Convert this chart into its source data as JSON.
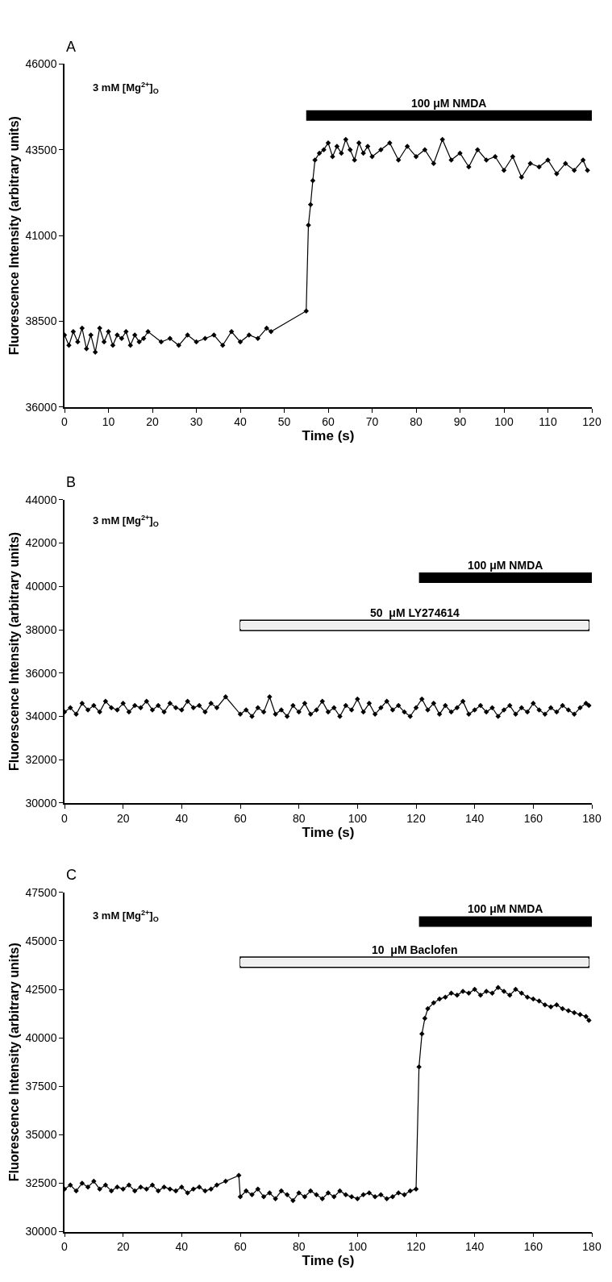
{
  "chart_data": [
    {
      "type": "line",
      "title": "A",
      "xlabel": "Time (s)",
      "ylabel": "Fluorescence Intensity (arbitrary units)",
      "annotations": [
        "3 mM [Mg$^{2+}$]$_{O}$"
      ],
      "x": [
        0,
        1,
        2,
        3,
        4,
        5,
        6,
        7,
        8,
        9,
        10,
        11,
        12,
        13,
        14,
        15,
        16,
        17,
        18,
        19,
        22,
        24,
        26,
        28,
        30,
        32,
        34,
        36,
        38,
        40,
        42,
        44,
        46,
        47,
        55,
        55.5,
        56,
        56.5,
        57,
        58,
        59,
        60,
        61,
        62,
        63,
        64,
        65,
        66,
        67,
        68,
        69,
        70,
        72,
        74,
        76,
        78,
        80,
        82,
        84,
        86,
        88,
        90,
        92,
        94,
        96,
        98,
        100,
        102,
        104,
        106,
        108,
        110,
        112,
        114,
        116,
        118,
        119
      ],
      "series": [
        {
          "color": "#000000",
          "values": [
            38100,
            37800,
            38200,
            37900,
            38300,
            37700,
            38100,
            37600,
            38300,
            37900,
            38200,
            37800,
            38100,
            38000,
            38200,
            37800,
            38100,
            37900,
            38000,
            38200,
            37900,
            38000,
            37800,
            38100,
            37900,
            38000,
            38100,
            37800,
            38200,
            37900,
            38100,
            38000,
            38300,
            38200,
            38800,
            41300,
            41900,
            42600,
            43200,
            43400,
            43500,
            43700,
            43300,
            43600,
            43400,
            43800,
            43500,
            43200,
            43700,
            43400,
            43600,
            43300,
            43500,
            43700,
            43200,
            43600,
            43300,
            43500,
            43100,
            43800,
            43200,
            43400,
            43000,
            43500,
            43200,
            43300,
            42900,
            43300,
            42700,
            43100,
            43000,
            43200,
            42800,
            43100,
            42900,
            43200,
            42900
          ]
        },
        {
          "type": "line",
          "name": "100 μM NMDA",
          "color": "#000000",
          "marker": "none",
          "x": [
            55,
            120
          ],
          "values": [
            44500,
            44500
          ]
        }
      ],
      "xlim": [
        0,
        120
      ],
      "xticks": [
        0,
        10,
        20,
        30,
        40,
        50,
        60,
        70,
        80,
        90,
        100,
        110,
        120
      ],
      "ylim": [
        36000,
        46000
      ],
      "yticks": [
        36000,
        38500,
        41000,
        43500,
        46000
      ],
      "marker": "diamond",
      "line_style": "solid",
      "grid": false,
      "legend": false
    },
    {
      "type": "line",
      "title": "B",
      "xlabel": "Time (s)",
      "ylabel": "Fluorescence Intensity (arbitrary units)",
      "annotations": [
        "3 mM [Mg$^{2+}$]$_{O}$"
      ],
      "x": [
        0,
        2,
        4,
        6,
        8,
        10,
        12,
        14,
        16,
        18,
        20,
        22,
        24,
        26,
        28,
        30,
        32,
        34,
        36,
        38,
        40,
        42,
        44,
        46,
        48,
        50,
        52,
        55,
        60,
        62,
        64,
        66,
        68,
        70,
        72,
        74,
        76,
        78,
        80,
        82,
        84,
        86,
        88,
        90,
        92,
        94,
        96,
        98,
        100,
        102,
        104,
        106,
        108,
        110,
        112,
        114,
        116,
        118,
        120,
        122,
        124,
        126,
        128,
        130,
        132,
        134,
        136,
        138,
        140,
        142,
        144,
        146,
        148,
        150,
        152,
        154,
        156,
        158,
        160,
        162,
        164,
        166,
        168,
        170,
        172,
        174,
        176,
        178,
        179
      ],
      "series": [
        {
          "color": "#000000",
          "values": [
            34200,
            34400,
            34100,
            34600,
            34300,
            34500,
            34200,
            34700,
            34400,
            34300,
            34600,
            34200,
            34500,
            34400,
            34700,
            34300,
            34500,
            34200,
            34600,
            34400,
            34300,
            34700,
            34400,
            34500,
            34200,
            34600,
            34400,
            34900,
            34100,
            34300,
            34000,
            34400,
            34200,
            34900,
            34100,
            34300,
            34000,
            34500,
            34200,
            34600,
            34100,
            34300,
            34700,
            34200,
            34400,
            34000,
            34500,
            34300,
            34800,
            34200,
            34600,
            34100,
            34400,
            34700,
            34300,
            34500,
            34200,
            34000,
            34400,
            34800,
            34300,
            34600,
            34100,
            34500,
            34200,
            34400,
            34700,
            34100,
            34300,
            34500,
            34200,
            34400,
            34000,
            34300,
            34500,
            34100,
            34400,
            34200,
            34600,
            34300,
            34100,
            34400,
            34200,
            34500,
            34300,
            34100,
            34400,
            34600,
            34500
          ]
        },
        {
          "type": "line",
          "name": "100 μM NMDA",
          "color": "#000000",
          "marker": "none",
          "x": [
            121,
            180
          ],
          "values": [
            40400,
            40400
          ]
        },
        {
          "type": "line",
          "name": "50  μM LY274614",
          "color": "#f0f0f0",
          "marker": "none",
          "x": [
            60,
            179
          ],
          "values": [
            38200,
            38200
          ]
        }
      ],
      "xlim": [
        0,
        180
      ],
      "xticks": [
        0,
        20,
        40,
        60,
        80,
        100,
        120,
        140,
        160,
        180
      ],
      "ylim": [
        30000,
        44000
      ],
      "yticks": [
        30000,
        32000,
        34000,
        36000,
        38000,
        40000,
        42000,
        44000
      ],
      "marker": "diamond",
      "line_style": "solid",
      "grid": false,
      "legend": false
    },
    {
      "type": "line",
      "title": "C",
      "xlabel": "Time (s)",
      "ylabel": "Fluorescence Intensity (arbitrary units)",
      "annotations": [
        "3 mM [Mg$^{2+}$]$_{O}$"
      ],
      "x": [
        0,
        2,
        4,
        6,
        8,
        10,
        12,
        14,
        16,
        18,
        20,
        22,
        24,
        26,
        28,
        30,
        32,
        34,
        36,
        38,
        40,
        42,
        44,
        46,
        48,
        50,
        52,
        55,
        59.5,
        60,
        62,
        64,
        66,
        68,
        70,
        72,
        74,
        76,
        78,
        80,
        82,
        84,
        86,
        88,
        90,
        92,
        94,
        96,
        98,
        100,
        102,
        104,
        106,
        108,
        110,
        112,
        114,
        116,
        118,
        120,
        121,
        122,
        123,
        124,
        126,
        128,
        130,
        132,
        134,
        136,
        138,
        140,
        142,
        144,
        146,
        148,
        150,
        152,
        154,
        156,
        158,
        160,
        162,
        164,
        166,
        168,
        170,
        172,
        174,
        176,
        178,
        179
      ],
      "series": [
        {
          "color": "#000000",
          "values": [
            32200,
            32400,
            32100,
            32500,
            32300,
            32600,
            32200,
            32400,
            32100,
            32300,
            32200,
            32400,
            32100,
            32300,
            32200,
            32400,
            32100,
            32300,
            32200,
            32100,
            32300,
            32000,
            32200,
            32300,
            32100,
            32200,
            32400,
            32600,
            32900,
            31800,
            32100,
            31900,
            32200,
            31800,
            32000,
            31700,
            32100,
            31900,
            31600,
            32000,
            31800,
            32100,
            31900,
            31700,
            32000,
            31800,
            32100,
            31900,
            31800,
            31700,
            31900,
            32000,
            31800,
            31900,
            31700,
            31800,
            32000,
            31900,
            32100,
            32200,
            38500,
            40200,
            41000,
            41500,
            41800,
            42000,
            42100,
            42300,
            42200,
            42400,
            42300,
            42500,
            42200,
            42400,
            42300,
            42600,
            42400,
            42200,
            42500,
            42300,
            42100,
            42000,
            41900,
            41700,
            41600,
            41700,
            41500,
            41400,
            41300,
            41200,
            41100,
            40900
          ]
        },
        {
          "type": "line",
          "name": "100 μM NMDA",
          "color": "#000000",
          "marker": "none",
          "x": [
            121,
            180
          ],
          "values": [
            46000,
            46000
          ]
        },
        {
          "type": "line",
          "name": "10  μM Baclofen",
          "color": "#f0f0f0",
          "marker": "none",
          "x": [
            60,
            179
          ],
          "values": [
            43900,
            43900
          ]
        }
      ],
      "xlim": [
        0,
        180
      ],
      "xticks": [
        0,
        20,
        40,
        60,
        80,
        100,
        120,
        140,
        160,
        180
      ],
      "ylim": [
        30000,
        47500
      ],
      "yticks": [
        30000,
        32500,
        35000,
        37500,
        40000,
        42500,
        45000,
        47500
      ],
      "marker": "diamond",
      "line_style": "solid",
      "grid": false,
      "legend": false
    }
  ]
}
